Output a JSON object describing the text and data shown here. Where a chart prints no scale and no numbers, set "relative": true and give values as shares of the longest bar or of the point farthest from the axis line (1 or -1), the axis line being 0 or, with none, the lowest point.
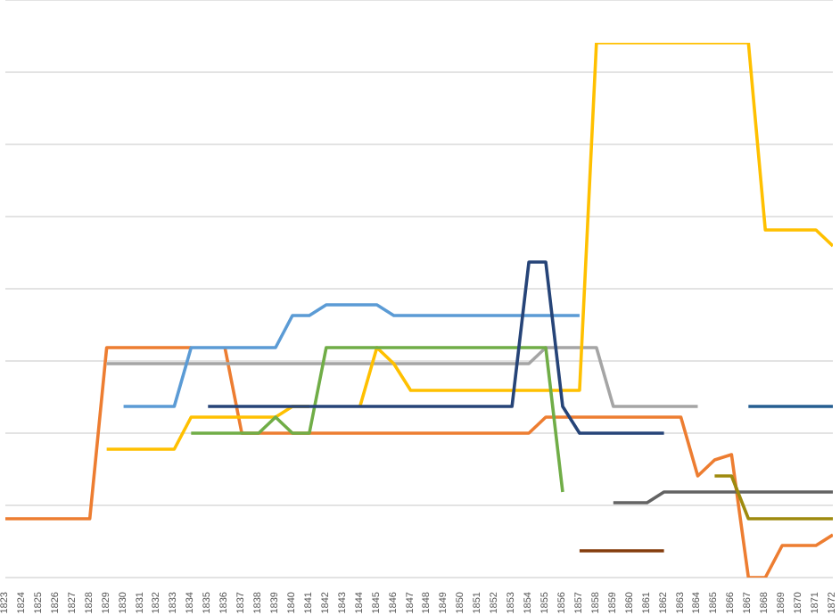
{
  "chart_data": {
    "type": "line",
    "relative": true,
    "grid": "y",
    "legend": false,
    "marker": "none",
    "line_style": "solid",
    "categories": [
      "1823",
      "1824",
      "1825",
      "1826",
      "1827",
      "1828",
      "1829",
      "1830",
      "1831",
      "1832",
      "1833",
      "1834",
      "1835",
      "1836",
      "1837",
      "1838",
      "1839",
      "1840",
      "1841",
      "1842",
      "1843",
      "1844",
      "1845",
      "1846",
      "1847",
      "1848",
      "1849",
      "1850",
      "1851",
      "1852",
      "1853",
      "1854",
      "1855",
      "1856",
      "1857",
      "1858",
      "1859",
      "1860",
      "1861",
      "1862",
      "1863",
      "1864",
      "1865",
      "1866",
      "1867",
      "1868",
      "1869",
      "1870",
      "1871",
      "1872"
    ],
    "series": [
      {
        "color": "#ed7d31",
        "values": [
          0.11,
          0.11,
          0.11,
          0.11,
          0.11,
          0.11,
          0.43,
          0.43,
          0.43,
          0.43,
          0.43,
          0.43,
          null,
          0.43,
          0.27,
          0.27,
          0.27,
          0.27,
          0.27,
          0.27,
          0.27,
          0.27,
          0.27,
          0.27,
          0.27,
          0.27,
          0.27,
          0.27,
          0.27,
          0.27,
          0.27,
          0.27,
          0.3,
          0.3,
          0.3,
          0.3,
          0.3,
          0.3,
          0.3,
          0.3,
          0.3,
          0.19,
          0.22,
          0.23,
          0.0,
          0.0,
          0.06,
          0.06,
          0.06,
          0.08
        ]
      },
      {
        "color": "#a5a5a5",
        "values": [
          null,
          null,
          null,
          null,
          null,
          null,
          0.4,
          0.4,
          0.4,
          0.4,
          0.4,
          0.4,
          0.4,
          0.4,
          0.4,
          0.4,
          0.4,
          0.4,
          0.4,
          0.4,
          0.4,
          0.4,
          0.4,
          0.4,
          0.4,
          0.4,
          0.4,
          0.4,
          0.4,
          0.4,
          0.4,
          0.4,
          0.43,
          0.43,
          0.43,
          0.43,
          0.32,
          0.32,
          0.32,
          0.32,
          0.32,
          0.32,
          null,
          null,
          null,
          null,
          null,
          null,
          null,
          null
        ]
      },
      {
        "color": "#5b9bd5",
        "values": [
          null,
          null,
          null,
          null,
          null,
          null,
          null,
          0.32,
          0.32,
          0.32,
          0.32,
          0.43,
          0.43,
          0.43,
          0.43,
          0.43,
          0.43,
          0.49,
          0.49,
          0.51,
          0.51,
          0.51,
          0.51,
          0.49,
          0.49,
          0.49,
          0.49,
          0.49,
          0.49,
          0.49,
          0.49,
          0.49,
          0.49,
          0.49,
          0.49,
          null,
          null,
          null,
          null,
          null,
          null,
          null,
          null,
          null,
          null,
          null,
          null,
          null,
          null,
          null
        ]
      },
      {
        "color": "#ffc000",
        "values": [
          null,
          null,
          null,
          null,
          null,
          null,
          0.24,
          0.24,
          0.24,
          0.24,
          0.24,
          0.3,
          0.3,
          0.3,
          0.3,
          0.3,
          0.3,
          0.32,
          0.32,
          null,
          null,
          0.32,
          0.43,
          0.4,
          0.35,
          0.35,
          0.35,
          0.35,
          0.35,
          0.35,
          0.35,
          0.35,
          0.35,
          0.35,
          0.35,
          1.0,
          1.0,
          1.0,
          1.0,
          1.0,
          1.0,
          1.0,
          1.0,
          1.0,
          1.0,
          0.65,
          0.65,
          0.65,
          0.65,
          0.62
        ]
      },
      {
        "color": "#70ad47",
        "values": [
          null,
          null,
          null,
          null,
          null,
          null,
          null,
          null,
          null,
          null,
          null,
          0.27,
          0.27,
          0.27,
          0.27,
          0.27,
          0.3,
          0.27,
          0.27,
          0.43,
          0.43,
          0.43,
          0.43,
          0.43,
          0.43,
          0.43,
          0.43,
          0.43,
          0.43,
          0.43,
          0.43,
          0.43,
          0.43,
          0.16,
          null,
          null,
          null,
          null,
          null,
          null,
          null,
          null,
          null,
          null,
          null,
          null,
          null,
          null,
          null,
          null
        ]
      },
      {
        "color": "#264478",
        "values": [
          null,
          null,
          null,
          null,
          null,
          null,
          null,
          null,
          null,
          null,
          null,
          null,
          0.32,
          0.32,
          0.32,
          0.32,
          0.32,
          0.32,
          0.32,
          0.32,
          0.32,
          0.32,
          0.32,
          0.32,
          0.32,
          0.32,
          0.32,
          0.32,
          0.32,
          0.32,
          0.32,
          0.59,
          0.59,
          0.32,
          0.27,
          0.27,
          0.27,
          0.27,
          0.27,
          0.27,
          null,
          null,
          null,
          null,
          null,
          null,
          null,
          null,
          null,
          null
        ]
      },
      {
        "color": "#636363",
        "values": [
          null,
          null,
          null,
          null,
          null,
          null,
          null,
          null,
          null,
          null,
          null,
          null,
          null,
          null,
          null,
          null,
          null,
          null,
          null,
          null,
          null,
          null,
          null,
          null,
          null,
          null,
          null,
          null,
          null,
          null,
          null,
          null,
          null,
          null,
          null,
          null,
          0.14,
          0.14,
          0.14,
          0.16,
          0.16,
          0.16,
          0.16,
          0.16,
          0.16,
          0.16,
          0.16,
          0.16,
          0.16,
          0.16
        ]
      },
      {
        "color": "#9e8a0e",
        "values": [
          null,
          null,
          null,
          null,
          null,
          null,
          null,
          null,
          null,
          null,
          null,
          null,
          null,
          null,
          null,
          null,
          null,
          null,
          null,
          null,
          null,
          null,
          null,
          null,
          null,
          null,
          null,
          null,
          null,
          null,
          null,
          null,
          null,
          null,
          null,
          null,
          null,
          null,
          null,
          null,
          null,
          null,
          0.19,
          0.19,
          0.11,
          0.11,
          0.11,
          0.11,
          0.11,
          0.11
        ]
      },
      {
        "color": "#255e91",
        "values": [
          null,
          null,
          null,
          null,
          null,
          null,
          null,
          null,
          null,
          null,
          null,
          null,
          null,
          null,
          null,
          null,
          null,
          null,
          null,
          null,
          null,
          null,
          null,
          null,
          null,
          null,
          null,
          null,
          null,
          null,
          null,
          null,
          null,
          null,
          null,
          null,
          null,
          null,
          null,
          null,
          null,
          null,
          null,
          null,
          0.32,
          0.32,
          0.32,
          0.32,
          0.32,
          0.32
        ]
      },
      {
        "color": "#843c0c",
        "values": [
          null,
          null,
          null,
          null,
          null,
          null,
          null,
          null,
          null,
          null,
          null,
          null,
          null,
          null,
          null,
          null,
          null,
          null,
          null,
          null,
          null,
          null,
          null,
          null,
          null,
          null,
          null,
          null,
          null,
          null,
          null,
          null,
          null,
          null,
          0.05,
          0.05,
          0.05,
          0.05,
          0.05,
          0.05,
          null,
          null,
          null,
          null,
          null,
          null,
          null,
          null,
          null,
          null
        ]
      }
    ]
  }
}
